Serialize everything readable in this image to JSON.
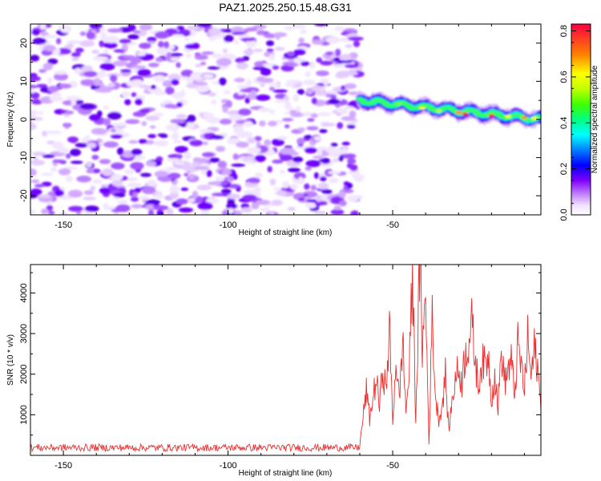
{
  "figure": {
    "title": "PAZ1.2025.250.15.48.G31"
  },
  "chart_data": [
    {
      "type": "heatmap",
      "title": "PAZ1.2025.250.15.48.G31",
      "xlabel": "Height of straight line (km)",
      "ylabel": "Frequency (Hz)",
      "colorbar_label": "Normalized spectral amplitude",
      "xlim": [
        -160,
        -5
      ],
      "ylim": [
        -25,
        25
      ],
      "x_ticks": [
        -150,
        -100,
        -50
      ],
      "y_ticks": [
        -20,
        -10,
        0,
        10,
        20
      ],
      "colorbar_range": [
        0,
        0.83
      ],
      "colorbar_ticks": [
        "0.0",
        "0.2",
        "0.4",
        "0.6",
        "0.8"
      ],
      "colormap": [
        "#ffffff",
        "#e8c8ff",
        "#b070ff",
        "#7000ff",
        "#0000ff",
        "#00ffff",
        "#00ff40",
        "#80ff00",
        "#ffff00",
        "#ff8000",
        "#ff0000"
      ],
      "signal_ridge": {
        "start_height_km": -60,
        "end_height_km": -5,
        "freq_start_hz": 5,
        "freq_end_hz": 0
      }
    },
    {
      "type": "line",
      "xlabel": "Height of straight line (km)",
      "ylabel": "SNR (10 * v/v)",
      "xlim": [
        -160,
        -5
      ],
      "ylim": [
        0,
        4700
      ],
      "x_ticks": [
        -150,
        -100,
        -50
      ],
      "y_ticks": [
        1000,
        2000,
        3000,
        4000
      ],
      "line_color": "#e83030",
      "series": [
        {
          "x": [
            -60,
            -58,
            -57,
            -55,
            -54,
            -53,
            -52,
            -51,
            -50,
            -49,
            -48,
            -47,
            -46,
            -45,
            -44,
            -43,
            -42,
            -41.5,
            -41,
            -40,
            -39,
            -38,
            -37,
            -36,
            -35,
            -34,
            -33,
            -32,
            -31,
            -30,
            -29,
            -28,
            -27,
            -26,
            -25,
            -24,
            -23,
            -22,
            -21,
            -20,
            -19,
            -18,
            -17,
            -16,
            -15,
            -14,
            -13,
            -12,
            -11,
            -10,
            -9,
            -8,
            -7,
            -6,
            -5
          ],
          "y": [
            250,
            1600,
            900,
            1900,
            1200,
            2200,
            1500,
            3200,
            800,
            2400,
            1300,
            2900,
            1100,
            2000,
            4500,
            900,
            4100,
            4700,
            2600,
            3900,
            300,
            3400,
            1400,
            900,
            1200,
            2000,
            600,
            1300,
            1900,
            2100,
            1800,
            2500,
            2800,
            3200,
            2400,
            1700,
            2300,
            2200,
            2500,
            1400,
            2000,
            1200,
            2600,
            1800,
            2100,
            2300,
            1500,
            2700,
            2200,
            1600,
            2900,
            1900,
            2600,
            2200,
            1100
          ]
        }
      ]
    }
  ]
}
